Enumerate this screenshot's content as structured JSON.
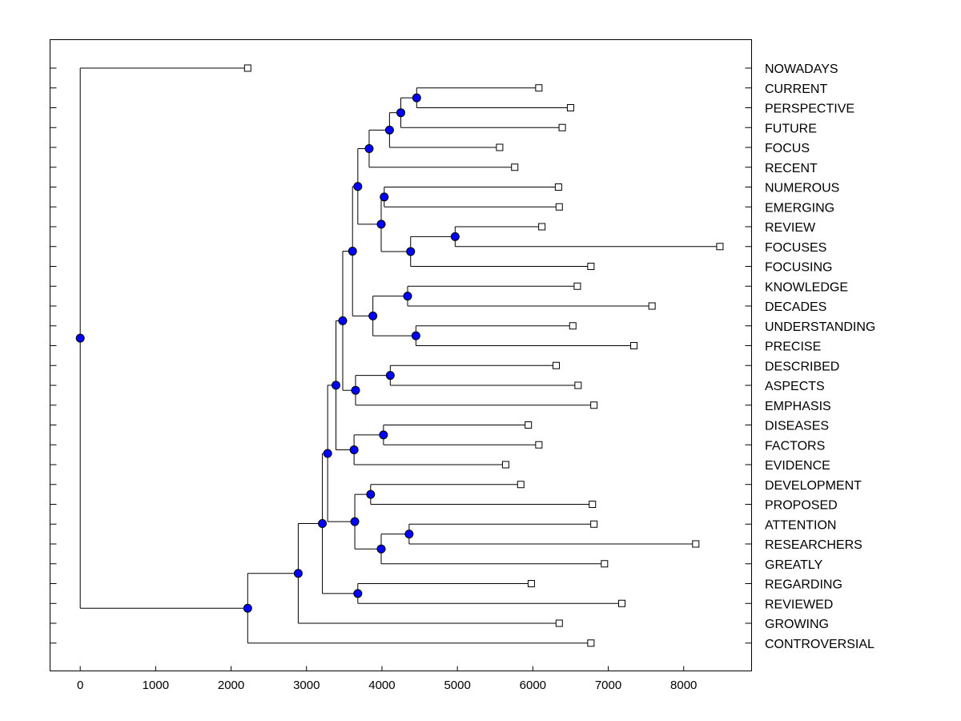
{
  "chart_data": {
    "type": "dendrogram",
    "title": "",
    "xlabel": "",
    "ylabel": "",
    "xlim": [
      -400,
      8900
    ],
    "xticks": [
      0,
      1000,
      2000,
      3000,
      4000,
      5000,
      6000,
      7000,
      8000
    ],
    "xtick_labels": [
      "0",
      "1000",
      "2000",
      "3000",
      "4000",
      "5000",
      "6000",
      "7000",
      "8000"
    ],
    "grid": false,
    "colors": {
      "node": "#0000ff",
      "leaf": "#ffffff",
      "line": "#000000"
    },
    "leaves": [
      {
        "label": "NOWADAYS",
        "x": 2220
      },
      {
        "label": "CURRENT",
        "x": 6080
      },
      {
        "label": "PERSPECTIVE",
        "x": 6500
      },
      {
        "label": "FUTURE",
        "x": 6390
      },
      {
        "label": "FOCUS",
        "x": 5560
      },
      {
        "label": "RECENT",
        "x": 5760
      },
      {
        "label": "NUMEROUS",
        "x": 6340
      },
      {
        "label": "EMERGING",
        "x": 6350
      },
      {
        "label": "REVIEW",
        "x": 6120
      },
      {
        "label": "FOCUSES",
        "x": 8480
      },
      {
        "label": "FOCUSING",
        "x": 6770
      },
      {
        "label": "KNOWLEDGE",
        "x": 6590
      },
      {
        "label": "DECADES",
        "x": 7580
      },
      {
        "label": "UNDERSTANDING",
        "x": 6530
      },
      {
        "label": "PRECISE",
        "x": 7340
      },
      {
        "label": "DESCRIBED",
        "x": 6310
      },
      {
        "label": "ASPECTS",
        "x": 6600
      },
      {
        "label": "EMPHASIS",
        "x": 6810
      },
      {
        "label": "DISEASES",
        "x": 5940
      },
      {
        "label": "FACTORS",
        "x": 6080
      },
      {
        "label": "EVIDENCE",
        "x": 5640
      },
      {
        "label": "DEVELOPMENT",
        "x": 5840
      },
      {
        "label": "PROPOSED",
        "x": 6790
      },
      {
        "label": "ATTENTION",
        "x": 6810
      },
      {
        "label": "RESEARCHERS",
        "x": 8160
      },
      {
        "label": "GREATLY",
        "x": 6950
      },
      {
        "label": "REGARDING",
        "x": 5980
      },
      {
        "label": "REVIEWED",
        "x": 7180
      },
      {
        "label": "GROWING",
        "x": 6350
      },
      {
        "label": "CONTROVERSIAL",
        "x": 6770
      }
    ],
    "merges": [
      {
        "id": "C1",
        "x": 4460,
        "children": [
          "L1",
          "L2"
        ]
      },
      {
        "id": "C2",
        "x": 4250,
        "children": [
          "C1",
          "L3"
        ]
      },
      {
        "id": "C3",
        "x": 4100,
        "children": [
          "C2",
          "L4"
        ]
      },
      {
        "id": "C4",
        "x": 3830,
        "children": [
          "C3",
          "L5"
        ]
      },
      {
        "id": "C5",
        "x": 4030,
        "children": [
          "L6",
          "L7"
        ]
      },
      {
        "id": "C6",
        "x": 4970,
        "children": [
          "L8",
          "L9"
        ]
      },
      {
        "id": "C7",
        "x": 4380,
        "children": [
          "C6",
          "L10"
        ]
      },
      {
        "id": "C8",
        "x": 3990,
        "children": [
          "C5",
          "C7"
        ]
      },
      {
        "id": "C9",
        "x": 3680,
        "children": [
          "C4",
          "C8"
        ]
      },
      {
        "id": "C10",
        "x": 4340,
        "children": [
          "L11",
          "L12"
        ]
      },
      {
        "id": "C11",
        "x": 4450,
        "children": [
          "L13",
          "L14"
        ]
      },
      {
        "id": "C12",
        "x": 3880,
        "children": [
          "C10",
          "C11"
        ]
      },
      {
        "id": "C13",
        "x": 3610,
        "children": [
          "C9",
          "C12"
        ]
      },
      {
        "id": "C14",
        "x": 4110,
        "children": [
          "L15",
          "L16"
        ]
      },
      {
        "id": "C15",
        "x": 3650,
        "children": [
          "C14",
          "L17"
        ]
      },
      {
        "id": "C16",
        "x": 3480,
        "children": [
          "C13",
          "C15"
        ]
      },
      {
        "id": "C17",
        "x": 4020,
        "children": [
          "L18",
          "L19"
        ]
      },
      {
        "id": "C18",
        "x": 3630,
        "children": [
          "C17",
          "L20"
        ]
      },
      {
        "id": "C19",
        "x": 3390,
        "children": [
          "C16",
          "C18"
        ]
      },
      {
        "id": "C20",
        "x": 3850,
        "children": [
          "L21",
          "L22"
        ]
      },
      {
        "id": "C21",
        "x": 4360,
        "children": [
          "L23",
          "L24"
        ]
      },
      {
        "id": "C22",
        "x": 3990,
        "children": [
          "C21",
          "L25"
        ]
      },
      {
        "id": "C23",
        "x": 3640,
        "children": [
          "C20",
          "C22"
        ]
      },
      {
        "id": "C24",
        "x": 3280,
        "children": [
          "C19",
          "C23"
        ]
      },
      {
        "id": "C25",
        "x": 3680,
        "children": [
          "L26",
          "L27"
        ]
      },
      {
        "id": "C26",
        "x": 3210,
        "children": [
          "C24",
          "C25"
        ]
      },
      {
        "id": "C27",
        "x": 2890,
        "children": [
          "C26",
          "L28"
        ]
      },
      {
        "id": "C28",
        "x": 2220,
        "children": [
          "C27",
          "L29"
        ]
      },
      {
        "id": "C29",
        "x": 0,
        "children": [
          "L0",
          "C28"
        ]
      }
    ]
  }
}
